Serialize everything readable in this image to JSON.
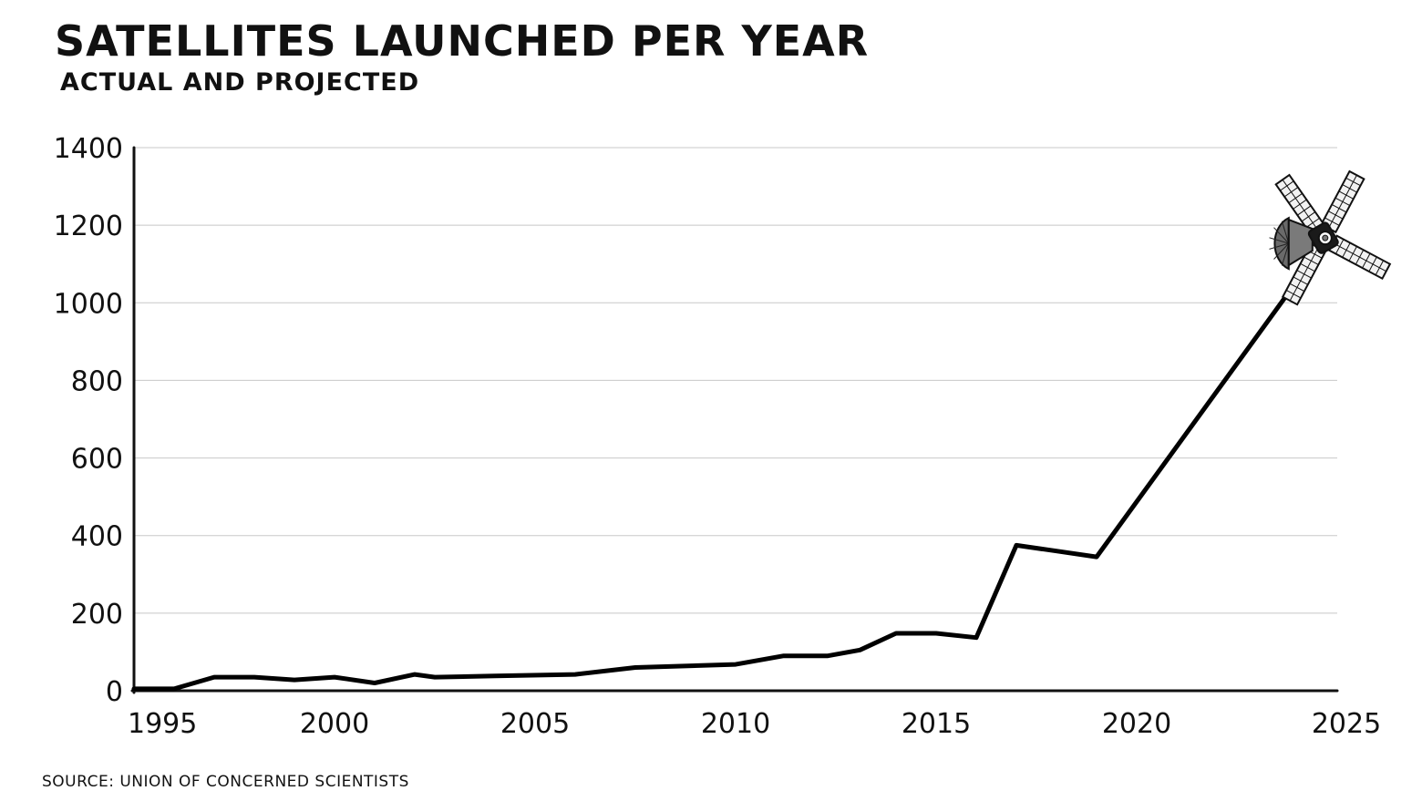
{
  "header": {
    "title": "SATELLITES LAUNCHED PER YEAR",
    "subtitle": "ACTUAL AND PROJECTED"
  },
  "footer": {
    "source": "SOURCE: UNION OF CONCERNED SCIENTISTS"
  },
  "colors": {
    "line": "#000000",
    "grid": "#c8c8c8",
    "axis": "#111111",
    "satellite_body": "#6a6a6a",
    "satellite_panel": "#f2f2f2"
  },
  "icons": {
    "marker": "satellite-icon"
  },
  "chart_data": {
    "type": "line",
    "title": "SATELLITES LAUNCHED PER YEAR",
    "subtitle": "ACTUAL AND PROJECTED",
    "xlabel": "",
    "ylabel": "",
    "xlim": [
      1995,
      2025
    ],
    "ylim": [
      0,
      1400
    ],
    "x_ticks": [
      1995,
      2000,
      2005,
      2010,
      2015,
      2020,
      2025
    ],
    "y_ticks": [
      0,
      200,
      400,
      600,
      800,
      1000,
      1200,
      1400
    ],
    "grid": true,
    "legend": "none",
    "series": [
      {
        "x": [
          1995,
          1996,
          1997,
          1998,
          1999,
          2000,
          2001,
          2002,
          2002.5,
          2004,
          2006,
          2007.5,
          2010,
          2011.2,
          2012.3,
          2013.1,
          2014,
          2015,
          2016,
          2017,
          2018,
          2019,
          2024.2
        ],
        "values": [
          5,
          5,
          35,
          35,
          28,
          35,
          20,
          42,
          35,
          38,
          42,
          60,
          68,
          90,
          90,
          105,
          148,
          148,
          137,
          375,
          360,
          345,
          1085
        ]
      }
    ]
  }
}
